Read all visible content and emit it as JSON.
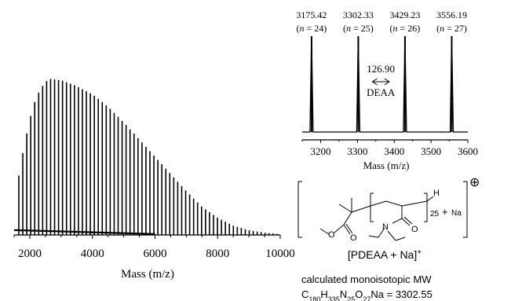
{
  "chart_data": [
    {
      "type": "bar",
      "panel": "main-spectrum",
      "xlabel": "Mass (m/z)",
      "ylabel": "",
      "xlim": [
        1500,
        10000
      ],
      "ylim": [
        0,
        1
      ],
      "x_tick_labels": [
        "2000",
        "4000",
        "6000",
        "8000",
        "10000"
      ],
      "x_ticks": [
        2000,
        4000,
        6000,
        8000,
        10000
      ],
      "series": [
        {
          "peak_spacing": 126.9,
          "peak_start": 1650,
          "envelope": [
            [
              1500,
              0.03
            ],
            [
              1650,
              0.38
            ],
            [
              1800,
              0.55
            ],
            [
              2000,
              0.74
            ],
            [
              2200,
              0.88
            ],
            [
              2400,
              0.95
            ],
            [
              2600,
              1.0
            ],
            [
              3000,
              0.99
            ],
            [
              3400,
              0.96
            ],
            [
              4000,
              0.9
            ],
            [
              4500,
              0.82
            ],
            [
              5000,
              0.72
            ],
            [
              5500,
              0.61
            ],
            [
              6000,
              0.5
            ],
            [
              6500,
              0.39
            ],
            [
              7000,
              0.28
            ],
            [
              7500,
              0.18
            ],
            [
              8000,
              0.11
            ],
            [
              8500,
              0.06
            ],
            [
              9000,
              0.03
            ],
            [
              9500,
              0.015
            ],
            [
              10000,
              0.005
            ]
          ]
        }
      ],
      "grid": false,
      "legend": "none"
    },
    {
      "type": "bar",
      "panel": "inset-zoom",
      "xlabel": "Mass (m/z)",
      "xlim": [
        3150,
        3600
      ],
      "x_tick_labels": [
        "3200",
        "3300",
        "3400",
        "3500",
        "3600"
      ],
      "x_ticks": [
        3200,
        3300,
        3400,
        3500,
        3600
      ],
      "peaks": [
        {
          "x": 3175.42,
          "label": "3175.42",
          "n_label": "(n = 24)",
          "height": 0.95
        },
        {
          "x": 3302.33,
          "label": "3302.33",
          "n_label": "(n = 25)",
          "height": 0.95
        },
        {
          "x": 3429.23,
          "label": "3429.23",
          "n_label": "(n = 26)",
          "height": 0.95
        },
        {
          "x": 3556.19,
          "label": "3556.19",
          "n_label": "(n = 27)",
          "height": 0.95
        }
      ],
      "annotation": {
        "value": "126.90",
        "unit_label": "DEAA",
        "from": 3302.33,
        "to": 3429.23
      },
      "grid": false,
      "legend": "none"
    }
  ],
  "structure": {
    "repeat_subscript": "25",
    "plus_sign": "+",
    "na_label": "Na",
    "h_label": "H",
    "n_atom": "N",
    "o_atom_1": "O",
    "o_atom_2": "O",
    "o_atom_3": "O",
    "charge_symbol": "⊕",
    "name_main": "[PDEAA + Na]",
    "name_sup": "+"
  },
  "calc": {
    "line1": "calculated monoisotopic MW",
    "formula_parts": [
      {
        "t": "C",
        "sub": false
      },
      {
        "t": "180",
        "sub": true
      },
      {
        "t": "H",
        "sub": false
      },
      {
        "t": "335",
        "sub": true
      },
      {
        "t": "N",
        "sub": false
      },
      {
        "t": "25",
        "sub": true
      },
      {
        "t": "O",
        "sub": false
      },
      {
        "t": "27",
        "sub": true
      },
      {
        "t": "Na = 3302.55",
        "sub": false
      }
    ]
  }
}
